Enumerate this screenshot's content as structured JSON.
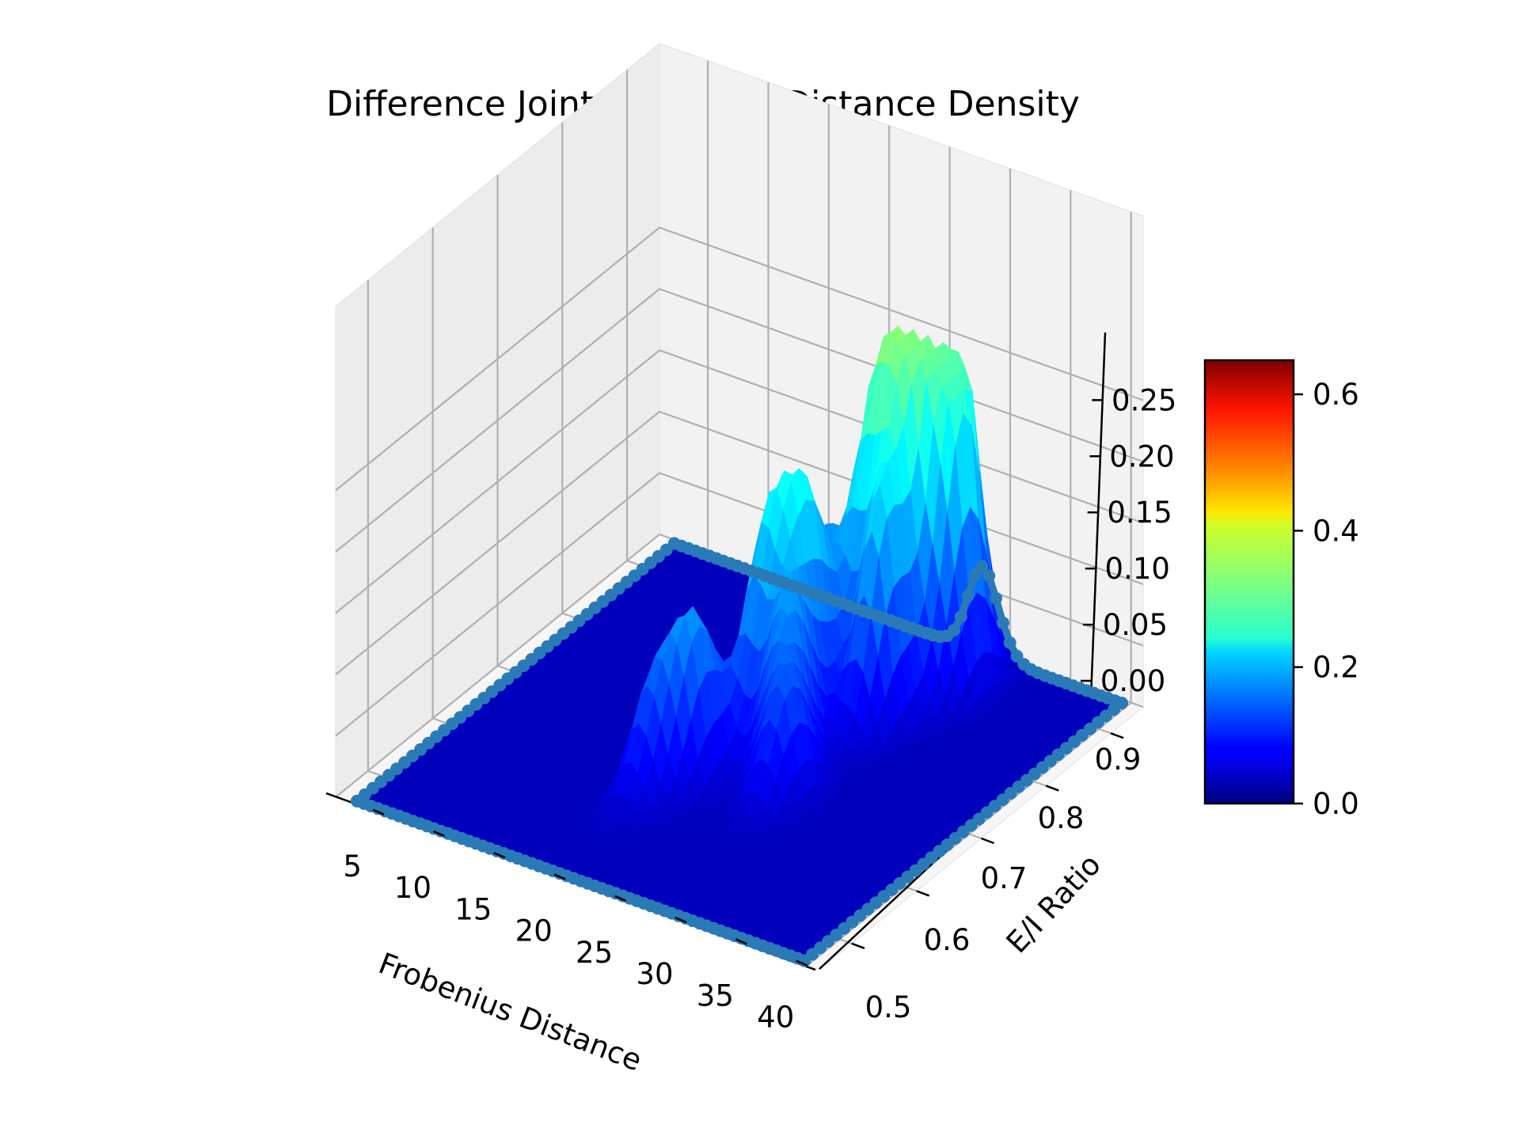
{
  "chart_data": {
    "type": "surface3d",
    "title": "Difference Joint Frobenius Distance Density",
    "xlabel": "Frobenius Distance",
    "ylabel": "E/I Ratio",
    "zlabel": "",
    "x_ticks": [
      "5",
      "10",
      "15",
      "20",
      "25",
      "30",
      "35",
      "40"
    ],
    "y_ticks": [
      "0.5",
      "0.6",
      "0.7",
      "0.8",
      "0.9"
    ],
    "z_ticks": [
      "0.00",
      "0.05",
      "0.10",
      "0.15",
      "0.20",
      "0.25"
    ],
    "xlim": [
      1,
      41
    ],
    "ylim": [
      0.45,
      0.95
    ],
    "zlim": [
      0,
      0.27
    ],
    "colormap": "jet",
    "colorbar": {
      "ticks": [
        "0.0",
        "0.2",
        "0.4",
        "0.6"
      ],
      "range": [
        0,
        0.65
      ],
      "placement": "right"
    },
    "edge_color": "#2a7ab8",
    "grid": true,
    "peaks": [
      {
        "x": 19.0,
        "y": 0.6,
        "z": 0.12
      },
      {
        "x": 20.5,
        "y": 0.64,
        "z": 0.15
      },
      {
        "x": 22.0,
        "y": 0.72,
        "z": 0.18
      },
      {
        "x": 23.5,
        "y": 0.76,
        "z": 0.17
      },
      {
        "x": 21.5,
        "y": 0.82,
        "z": 0.14
      },
      {
        "x": 24.5,
        "y": 0.84,
        "z": 0.21
      },
      {
        "x": 26.5,
        "y": 0.86,
        "z": 0.25
      },
      {
        "x": 28.0,
        "y": 0.9,
        "z": 0.27
      },
      {
        "x": 27.5,
        "y": 0.8,
        "z": 0.2
      },
      {
        "x": 29.5,
        "y": 0.88,
        "z": 0.22
      },
      {
        "x": 25.0,
        "y": 0.7,
        "z": 0.13
      },
      {
        "x": 27.0,
        "y": 0.66,
        "z": 0.1
      }
    ]
  }
}
